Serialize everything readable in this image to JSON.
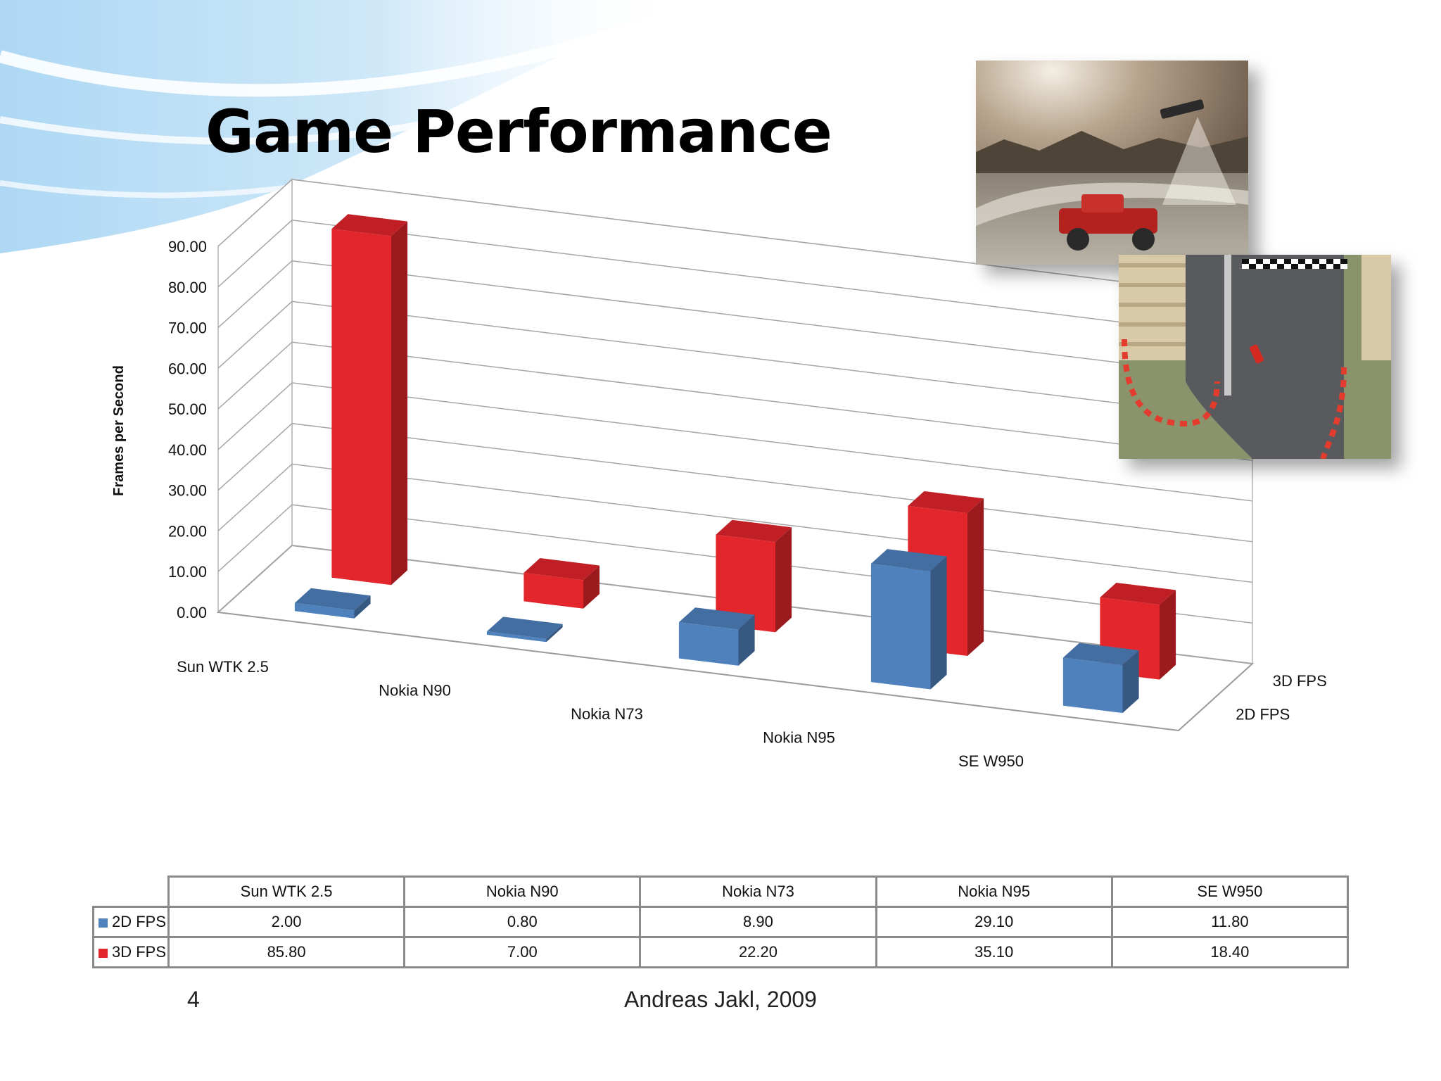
{
  "slide": {
    "title": "Game Performance",
    "page_number": "4",
    "footer": "Andreas Jakl, 2009"
  },
  "colors": {
    "series_2d": "#4f81bd",
    "series_3d": "#e2262b"
  },
  "chart_data": {
    "type": "bar",
    "style": "3d-clustered-depth",
    "title": "",
    "xlabel": "",
    "ylabel": "Frames per Second",
    "ylim": [
      0,
      90
    ],
    "ytick_step": 10,
    "ytick_labels": [
      "0.00",
      "10.00",
      "20.00",
      "30.00",
      "40.00",
      "50.00",
      "60.00",
      "70.00",
      "80.00",
      "90.00"
    ],
    "grid": true,
    "categories": [
      "Sun WTK 2.5",
      "Nokia N90",
      "Nokia N73",
      "Nokia N95",
      "SE W950"
    ],
    "series": [
      {
        "name": "2D FPS",
        "values": [
          2.0,
          0.8,
          8.9,
          29.1,
          11.8
        ]
      },
      {
        "name": "3D FPS",
        "values": [
          85.8,
          7.0,
          22.2,
          35.1,
          18.4
        ]
      }
    ]
  },
  "table": {
    "headers": [
      "Sun WTK 2.5",
      "Nokia N90",
      "Nokia N73",
      "Nokia N95",
      "SE W950"
    ],
    "rows": [
      {
        "label": "2D FPS",
        "cells": [
          "2.00",
          "0.80",
          "8.90",
          "29.10",
          "11.80"
        ]
      },
      {
        "label": "3D FPS",
        "cells": [
          "85.80",
          "7.00",
          "22.20",
          "35.10",
          "18.40"
        ]
      }
    ]
  }
}
